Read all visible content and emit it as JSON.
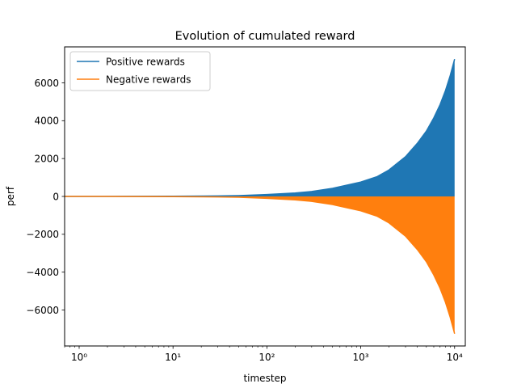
{
  "chart_data": {
    "type": "area",
    "title": "Evolution of cumulated reward",
    "xlabel": "timestep",
    "ylabel": "perf",
    "xscale": "log",
    "xlim": [
      0.7,
      13000
    ],
    "ylim": [
      -7900,
      7900
    ],
    "x_ticks": [
      {
        "value": 1,
        "label": "10⁰"
      },
      {
        "value": 10,
        "label": "10¹"
      },
      {
        "value": 100,
        "label": "10²"
      },
      {
        "value": 1000,
        "label": "10³"
      },
      {
        "value": 10000,
        "label": "10⁴"
      }
    ],
    "y_ticks": [
      {
        "value": 6000,
        "label": "6000"
      },
      {
        "value": 4000,
        "label": "4000"
      },
      {
        "value": 2000,
        "label": "2000"
      },
      {
        "value": 0,
        "label": "0"
      },
      {
        "value": -2000,
        "label": "−2000"
      },
      {
        "value": -4000,
        "label": "−4000"
      },
      {
        "value": -6000,
        "label": "−6000"
      }
    ],
    "legend_position": "top-left",
    "grid": false,
    "series": [
      {
        "name": "Positive rewards",
        "color": "#1f77b4",
        "points": [
          [
            1,
            1
          ],
          [
            3,
            3
          ],
          [
            10,
            10
          ],
          [
            30,
            25
          ],
          [
            50,
            45
          ],
          [
            100,
            100
          ],
          [
            200,
            180
          ],
          [
            300,
            260
          ],
          [
            500,
            430
          ],
          [
            1000,
            760
          ],
          [
            1500,
            1050
          ],
          [
            2000,
            1400
          ],
          [
            3000,
            2100
          ],
          [
            4000,
            2800
          ],
          [
            5000,
            3450
          ],
          [
            6000,
            4150
          ],
          [
            7000,
            4850
          ],
          [
            8000,
            5600
          ],
          [
            9000,
            6400
          ],
          [
            10000,
            7250
          ]
        ]
      },
      {
        "name": "Negative rewards",
        "color": "#ff7f0e",
        "points": [
          [
            1,
            -1
          ],
          [
            3,
            -3
          ],
          [
            10,
            -10
          ],
          [
            30,
            -25
          ],
          [
            50,
            -45
          ],
          [
            100,
            -100
          ],
          [
            200,
            -180
          ],
          [
            300,
            -260
          ],
          [
            500,
            -430
          ],
          [
            1000,
            -760
          ],
          [
            1500,
            -1050
          ],
          [
            2000,
            -1400
          ],
          [
            3000,
            -2100
          ],
          [
            4000,
            -2800
          ],
          [
            5000,
            -3450
          ],
          [
            6000,
            -4150
          ],
          [
            7000,
            -4850
          ],
          [
            8000,
            -5600
          ],
          [
            9000,
            -6400
          ],
          [
            10000,
            -7250
          ]
        ]
      }
    ]
  }
}
